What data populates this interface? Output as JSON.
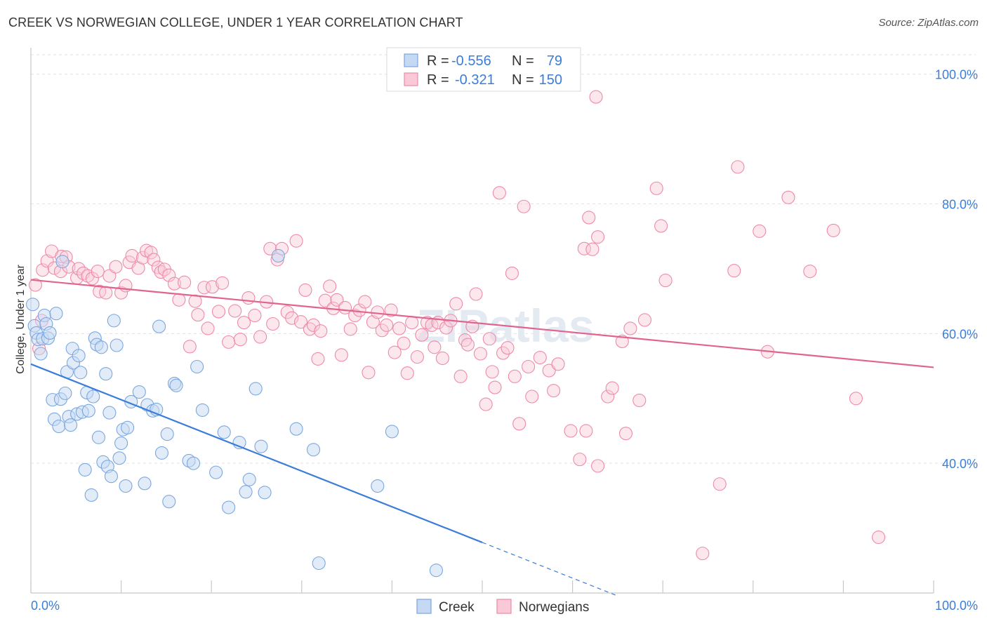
{
  "title": "CREEK VS NORWEGIAN COLLEGE, UNDER 1 YEAR CORRELATION CHART",
  "source": "Source: ZipAtlas.com",
  "watermark": "ZIPatlas",
  "legend_top": {
    "rows": [
      {
        "r_label": "R = ",
        "r_value": "-0.556",
        "n_label": "N = ",
        "n_value": "79",
        "color": "#7aa7e0",
        "fill": "#c5d9f3"
      },
      {
        "r_label": "R = ",
        "r_value": "-0.321",
        "n_label": "N = ",
        "n_value": "150",
        "color": "#ee8aaa",
        "fill": "#f9c9d8"
      }
    ]
  },
  "legend_bottom": [
    {
      "label": "Creek",
      "color": "#7aa7e0",
      "fill": "#c5d9f3"
    },
    {
      "label": "Norwegians",
      "color": "#ee8aaa",
      "fill": "#f9c9d8"
    }
  ],
  "chart_data": {
    "type": "scatter",
    "title": "CREEK VS NORWEGIAN COLLEGE, UNDER 1 YEAR CORRELATION CHART",
    "xlabel": "",
    "ylabel": "College, Under 1 year",
    "xlim": [
      0,
      100
    ],
    "ylim": [
      20,
      103
    ],
    "x_tick_labels": [
      "0.0%",
      "100.0%"
    ],
    "y_ticks": [
      40,
      60,
      80,
      100
    ],
    "y_tick_labels": [
      "40.0%",
      "60.0%",
      "80.0%",
      "100.0%"
    ],
    "grid": true,
    "legend_placement": "top-center",
    "colors": {
      "creek": "#3b7dd8",
      "norwegians": "#e0648f"
    },
    "series": [
      {
        "name": "Creek",
        "trend": {
          "x": [
            0,
            50
          ],
          "y": [
            55.3,
            27.8
          ],
          "dashed_extension_to_x": 65
        },
        "points": [
          [
            0.2,
            64.5
          ],
          [
            0.4,
            61.2
          ],
          [
            0.6,
            60.1
          ],
          [
            0.8,
            59.1
          ],
          [
            1.1,
            56.9
          ],
          [
            1.3,
            59.2
          ],
          [
            1.5,
            62.8
          ],
          [
            1.7,
            61.5
          ],
          [
            1.9,
            59.3
          ],
          [
            2.1,
            60.1
          ],
          [
            2.4,
            49.8
          ],
          [
            2.6,
            46.8
          ],
          [
            2.8,
            63.1
          ],
          [
            3.1,
            45.7
          ],
          [
            3.3,
            49.9
          ],
          [
            3.5,
            71.1
          ],
          [
            3.8,
            50.8
          ],
          [
            4.0,
            54.1
          ],
          [
            4.2,
            47.2
          ],
          [
            4.4,
            45.9
          ],
          [
            4.6,
            57.7
          ],
          [
            4.7,
            55.5
          ],
          [
            5.1,
            47.6
          ],
          [
            5.3,
            56.6
          ],
          [
            5.5,
            54.0
          ],
          [
            5.7,
            47.9
          ],
          [
            6.0,
            39.0
          ],
          [
            6.2,
            50.9
          ],
          [
            6.4,
            48.1
          ],
          [
            6.7,
            35.1
          ],
          [
            6.9,
            50.3
          ],
          [
            7.1,
            59.3
          ],
          [
            7.3,
            58.3
          ],
          [
            7.5,
            44.0
          ],
          [
            7.8,
            57.9
          ],
          [
            8.0,
            40.2
          ],
          [
            8.3,
            53.8
          ],
          [
            8.5,
            39.5
          ],
          [
            8.7,
            47.8
          ],
          [
            8.9,
            38.0
          ],
          [
            9.2,
            62.0
          ],
          [
            9.5,
            58.2
          ],
          [
            9.8,
            40.8
          ],
          [
            10.0,
            43.1
          ],
          [
            10.2,
            45.2
          ],
          [
            10.5,
            36.5
          ],
          [
            10.7,
            45.5
          ],
          [
            11.1,
            49.5
          ],
          [
            12.0,
            51.0
          ],
          [
            12.6,
            36.9
          ],
          [
            12.9,
            49.0
          ],
          [
            13.5,
            48.1
          ],
          [
            13.9,
            48.3
          ],
          [
            14.2,
            61.1
          ],
          [
            14.5,
            41.6
          ],
          [
            15.1,
            44.5
          ],
          [
            15.3,
            34.1
          ],
          [
            15.9,
            52.3
          ],
          [
            16.1,
            52.0
          ],
          [
            17.5,
            40.4
          ],
          [
            18.0,
            40.0
          ],
          [
            18.4,
            54.9
          ],
          [
            19.0,
            48.2
          ],
          [
            20.5,
            38.6
          ],
          [
            21.4,
            44.8
          ],
          [
            21.9,
            33.2
          ],
          [
            23.1,
            43.2
          ],
          [
            23.8,
            35.6
          ],
          [
            24.2,
            37.5
          ],
          [
            24.9,
            51.5
          ],
          [
            25.5,
            42.6
          ],
          [
            25.9,
            35.5
          ],
          [
            27.4,
            72.0
          ],
          [
            29.4,
            45.3
          ],
          [
            31.3,
            42.1
          ],
          [
            31.9,
            24.6
          ],
          [
            38.4,
            36.5
          ],
          [
            40.0,
            44.9
          ],
          [
            44.9,
            23.5
          ]
        ]
      },
      {
        "name": "Norwegians",
        "trend": {
          "x": [
            0,
            100
          ],
          "y": [
            68.3,
            54.8
          ]
        },
        "points": [
          [
            0.5,
            67.5
          ],
          [
            0.9,
            57.7
          ],
          [
            1.2,
            62.0
          ],
          [
            1.3,
            69.8
          ],
          [
            1.8,
            71.2
          ],
          [
            2.3,
            72.7
          ],
          [
            2.6,
            70.1
          ],
          [
            3.3,
            69.6
          ],
          [
            3.4,
            71.9
          ],
          [
            3.9,
            71.8
          ],
          [
            4.2,
            70.3
          ],
          [
            5.1,
            68.6
          ],
          [
            5.3,
            70.0
          ],
          [
            5.8,
            69.3
          ],
          [
            6.3,
            68.9
          ],
          [
            6.8,
            68.5
          ],
          [
            7.4,
            69.6
          ],
          [
            7.6,
            66.5
          ],
          [
            8.3,
            66.3
          ],
          [
            8.7,
            68.9
          ],
          [
            9.4,
            70.3
          ],
          [
            10.0,
            66.3
          ],
          [
            10.5,
            67.4
          ],
          [
            10.9,
            71.0
          ],
          [
            11.2,
            72.0
          ],
          [
            11.9,
            70.1
          ],
          [
            12.4,
            71.7
          ],
          [
            12.8,
            72.8
          ],
          [
            13.3,
            72.5
          ],
          [
            13.6,
            71.4
          ],
          [
            14.1,
            70.2
          ],
          [
            14.4,
            69.5
          ],
          [
            14.8,
            69.9
          ],
          [
            15.3,
            69.0
          ],
          [
            15.9,
            67.7
          ],
          [
            16.4,
            65.2
          ],
          [
            17.0,
            67.9
          ],
          [
            17.6,
            58.0
          ],
          [
            18.2,
            65.0
          ],
          [
            18.5,
            62.9
          ],
          [
            19.2,
            67.1
          ],
          [
            19.6,
            60.8
          ],
          [
            20.1,
            67.2
          ],
          [
            20.8,
            63.4
          ],
          [
            21.2,
            67.8
          ],
          [
            21.9,
            58.7
          ],
          [
            22.6,
            63.5
          ],
          [
            23.2,
            59.1
          ],
          [
            23.6,
            61.7
          ],
          [
            24.1,
            65.5
          ],
          [
            24.8,
            62.8
          ],
          [
            25.4,
            59.5
          ],
          [
            26.1,
            64.9
          ],
          [
            26.5,
            73.1
          ],
          [
            26.8,
            61.5
          ],
          [
            27.3,
            71.4
          ],
          [
            27.8,
            73.1
          ],
          [
            28.4,
            63.3
          ],
          [
            28.9,
            62.4
          ],
          [
            29.4,
            74.3
          ],
          [
            29.9,
            61.8
          ],
          [
            30.4,
            66.7
          ],
          [
            30.9,
            60.7
          ],
          [
            31.3,
            61.3
          ],
          [
            32.1,
            60.4
          ],
          [
            31.8,
            56.1
          ],
          [
            32.6,
            65.1
          ],
          [
            33.1,
            67.3
          ],
          [
            33.5,
            63.9
          ],
          [
            33.9,
            65.2
          ],
          [
            34.4,
            56.7
          ],
          [
            34.8,
            64.0
          ],
          [
            35.4,
            60.7
          ],
          [
            35.9,
            62.8
          ],
          [
            36.4,
            63.6
          ],
          [
            37.0,
            64.9
          ],
          [
            37.4,
            54.0
          ],
          [
            37.9,
            61.8
          ],
          [
            38.4,
            63.3
          ],
          [
            38.9,
            60.5
          ],
          [
            39.4,
            61.3
          ],
          [
            39.9,
            63.6
          ],
          [
            40.3,
            57.1
          ],
          [
            40.8,
            60.8
          ],
          [
            41.3,
            58.5
          ],
          [
            41.7,
            53.9
          ],
          [
            42.2,
            61.7
          ],
          [
            42.8,
            56.4
          ],
          [
            43.3,
            59.8
          ],
          [
            43.9,
            61.7
          ],
          [
            44.4,
            61.3
          ],
          [
            44.7,
            57.9
          ],
          [
            45.1,
            61.7
          ],
          [
            45.6,
            56.2
          ],
          [
            46.0,
            60.9
          ],
          [
            46.5,
            62.0
          ],
          [
            47.1,
            64.6
          ],
          [
            47.6,
            53.4
          ],
          [
            48.1,
            59.0
          ],
          [
            48.4,
            58.3
          ],
          [
            48.9,
            61.1
          ],
          [
            49.3,
            66.1
          ],
          [
            49.8,
            56.9
          ],
          [
            50.4,
            49.1
          ],
          [
            50.8,
            59.2
          ],
          [
            51.1,
            54.1
          ],
          [
            51.4,
            51.7
          ],
          [
            51.9,
            81.7
          ],
          [
            52.3,
            57.0
          ],
          [
            52.8,
            57.8
          ],
          [
            53.3,
            69.3
          ],
          [
            53.6,
            53.4
          ],
          [
            54.1,
            46.1
          ],
          [
            54.6,
            79.6
          ],
          [
            55.1,
            54.9
          ],
          [
            55.5,
            50.3
          ],
          [
            56.4,
            56.3
          ],
          [
            57.4,
            54.3
          ],
          [
            57.9,
            51.2
          ],
          [
            58.4,
            55.3
          ],
          [
            59.8,
            45.0
          ],
          [
            60.8,
            40.6
          ],
          [
            61.3,
            73.1
          ],
          [
            61.8,
            77.9
          ],
          [
            62.2,
            73.0
          ],
          [
            62.8,
            74.9
          ],
          [
            62.8,
            39.6
          ],
          [
            63.9,
            50.3
          ],
          [
            64.4,
            51.6
          ],
          [
            65.5,
            58.8
          ],
          [
            65.9,
            44.6
          ],
          [
            66.4,
            60.8
          ],
          [
            67.4,
            49.7
          ],
          [
            68.0,
            62.1
          ],
          [
            69.3,
            82.4
          ],
          [
            69.8,
            76.6
          ],
          [
            70.3,
            68.2
          ],
          [
            74.4,
            26.1
          ],
          [
            76.3,
            36.8
          ],
          [
            77.9,
            69.7
          ],
          [
            78.3,
            85.7
          ],
          [
            80.7,
            75.8
          ],
          [
            81.6,
            57.2
          ],
          [
            83.9,
            81.0
          ],
          [
            86.3,
            69.6
          ],
          [
            88.9,
            75.9
          ],
          [
            91.4,
            50.0
          ],
          [
            93.9,
            28.6
          ],
          [
            62.6,
            96.5
          ],
          [
            61.5,
            45.0
          ]
        ]
      }
    ]
  }
}
